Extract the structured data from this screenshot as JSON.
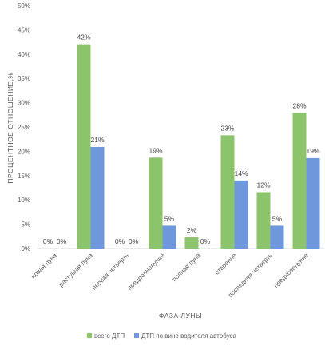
{
  "chart_data": {
    "type": "bar",
    "categories": [
      "новая луна",
      "растущая луна",
      "первая четверть",
      "предполнолуние",
      "полная луна",
      "старение",
      "последняя четверть",
      "предноволуние"
    ],
    "series": [
      {
        "name": "всего ДТП",
        "values": [
          0,
          42,
          0,
          19,
          2,
          23,
          12,
          28
        ],
        "exact": [
          0,
          42,
          0,
          18.7,
          2.3,
          23.3,
          11.6,
          27.9
        ],
        "color": "#8cc46b",
        "data_labels": [
          "0%",
          "42%",
          "0%",
          "19%",
          "2%",
          "23%",
          "12%",
          "28%"
        ]
      },
      {
        "name": "ДТП по вине водителя автобуса",
        "values": [
          0,
          21,
          0,
          5,
          0,
          14,
          5,
          19
        ],
        "exact": [
          0,
          20.9,
          0,
          4.7,
          0,
          14,
          4.7,
          18.6
        ],
        "color": "#6f97dc",
        "data_labels": [
          "0%",
          "21%",
          "0%",
          "5%",
          "0%",
          "14%",
          "5%",
          "19%"
        ]
      }
    ],
    "ylim": [
      0,
      50
    ],
    "yticks": [
      "0%",
      "5%",
      "10%",
      "15%",
      "20%",
      "25%",
      "30%",
      "35%",
      "40%",
      "45%",
      "50%"
    ],
    "xlabel": "ФАЗА ЛУНЫ",
    "ylabel": "ПРОЦЕНТНОЕ ОТНОШЕНИЕ,%",
    "grid": false,
    "legend_position": "bottom"
  }
}
